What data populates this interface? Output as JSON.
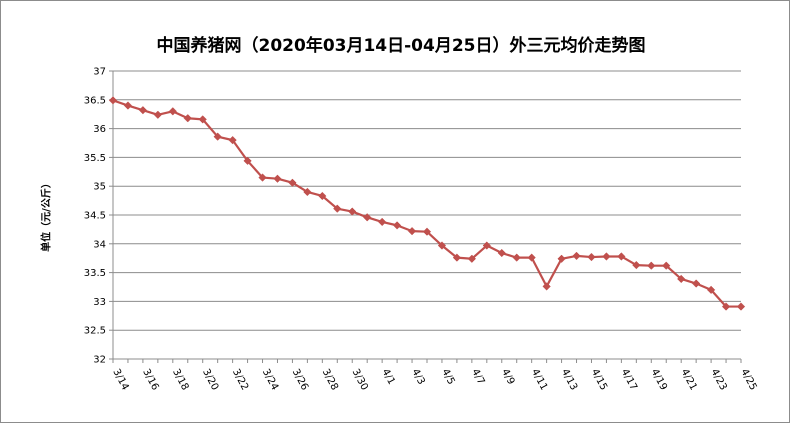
{
  "chart_data": {
    "type": "line",
    "title": "中国养猪网（2020年03月14日-04月25日）外三元均价走势图",
    "ylabel": "单位（元/公斤）",
    "xlabel": "",
    "ylim": [
      32,
      37
    ],
    "yticks": [
      "32",
      "32.5",
      "33",
      "33.5",
      "34",
      "34.5",
      "35",
      "35.5",
      "36",
      "36.5",
      "37"
    ],
    "grid": true,
    "x_tick_labels": [
      "3/14",
      "3/16",
      "3/18",
      "3/20",
      "3/22",
      "3/24",
      "3/26",
      "3/28",
      "3/30",
      "4/1",
      "4/3",
      "4/5",
      "4/7",
      "4/9",
      "4/11",
      "4/13",
      "4/15",
      "4/17",
      "4/19",
      "4/21",
      "4/23",
      "4/25"
    ],
    "color": "#c0504d",
    "series": [
      {
        "values": [
          36.49,
          36.4,
          36.32,
          36.24,
          36.3,
          36.18,
          36.16,
          35.86,
          35.8,
          35.44,
          35.15,
          35.13,
          35.06,
          34.9,
          34.83,
          34.61,
          34.56,
          34.46,
          34.38,
          34.32,
          34.22,
          34.21,
          33.97,
          33.76,
          33.74,
          33.97,
          33.84,
          33.76,
          33.76,
          33.26,
          33.74,
          33.79,
          33.77,
          33.78,
          33.78,
          33.63,
          33.62,
          33.62,
          33.39,
          33.31,
          33.2,
          32.91,
          32.91
        ]
      }
    ]
  }
}
